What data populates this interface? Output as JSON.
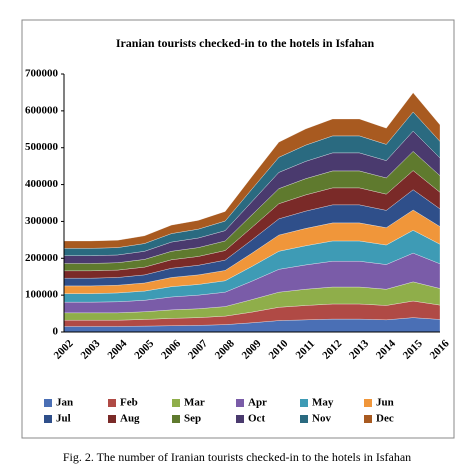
{
  "chart_data": {
    "type": "stacked-area",
    "title": "Iranian tourists checked-in to the hotels in Isfahan",
    "caption": "Fig. 2. The number of Iranian tourists checked-in to the hotels in Isfahan",
    "categories": [
      "2002",
      "2003",
      "2004",
      "2005",
      "2006",
      "2007",
      "2008",
      "2009",
      "2010",
      "2011",
      "2012",
      "2013",
      "2014",
      "2015",
      "2016"
    ],
    "ylim": [
      0,
      700000
    ],
    "yticks": [
      0,
      100000,
      200000,
      300000,
      400000,
      500000,
      600000,
      700000
    ],
    "series": [
      {
        "name": "Jan",
        "color": "#4a6fb5",
        "values": [
          15000,
          15000,
          15000,
          16000,
          17000,
          18000,
          20000,
          25000,
          31000,
          33000,
          35000,
          35000,
          33000,
          39000,
          34000
        ]
      },
      {
        "name": "Feb",
        "color": "#b04a45",
        "values": [
          17000,
          17000,
          17000,
          18000,
          20000,
          21000,
          23000,
          29000,
          36000,
          39000,
          41000,
          41000,
          39000,
          45000,
          39000
        ]
      },
      {
        "name": "Mar",
        "color": "#8fae4a",
        "values": [
          20000,
          20000,
          20000,
          21000,
          23000,
          24000,
          26000,
          34000,
          41000,
          44000,
          46000,
          46000,
          44000,
          52000,
          45000
        ]
      },
      {
        "name": "Apr",
        "color": "#7a5ca8",
        "values": [
          29000,
          29000,
          30000,
          31000,
          35000,
          37000,
          39000,
          50000,
          62000,
          66000,
          70000,
          70000,
          67000,
          78000,
          67000
        ]
      },
      {
        "name": "May",
        "color": "#3e9bb5",
        "values": [
          23000,
          23000,
          24000,
          25000,
          28000,
          29000,
          31000,
          40000,
          49000,
          52000,
          55000,
          55000,
          53000,
          62000,
          53000
        ]
      },
      {
        "name": "Jun",
        "color": "#f0963a",
        "values": [
          21000,
          21000,
          21000,
          22000,
          25000,
          26000,
          28000,
          36000,
          44000,
          47000,
          49000,
          49000,
          47000,
          55000,
          48000
        ]
      },
      {
        "name": "Jul",
        "color": "#2f4f8a",
        "values": [
          21000,
          21000,
          21000,
          22000,
          25000,
          26000,
          28000,
          36000,
          44000,
          47000,
          49000,
          49000,
          47000,
          55000,
          48000
        ]
      },
      {
        "name": "Aug",
        "color": "#7a2a28",
        "values": [
          20000,
          20000,
          20000,
          21000,
          23000,
          24000,
          26000,
          34000,
          41000,
          44000,
          46000,
          46000,
          44000,
          52000,
          45000
        ]
      },
      {
        "name": "Sep",
        "color": "#5f7a2e",
        "values": [
          20000,
          20000,
          20000,
          21000,
          23000,
          24000,
          26000,
          34000,
          41000,
          44000,
          46000,
          46000,
          44000,
          52000,
          45000
        ]
      },
      {
        "name": "Oct",
        "color": "#4a3a6e",
        "values": [
          21000,
          21000,
          21000,
          22000,
          25000,
          26000,
          28000,
          36000,
          44000,
          47000,
          49000,
          49000,
          47000,
          55000,
          48000
        ]
      },
      {
        "name": "Nov",
        "color": "#2a6a80",
        "values": [
          20000,
          20000,
          20000,
          21000,
          23000,
          24000,
          26000,
          34000,
          41000,
          44000,
          46000,
          46000,
          44000,
          52000,
          45000
        ]
      },
      {
        "name": "Dec",
        "color": "#a85a20",
        "values": [
          20000,
          20000,
          20000,
          21000,
          23000,
          24000,
          26000,
          34000,
          41000,
          44000,
          46000,
          46000,
          44000,
          52000,
          45000
        ]
      }
    ]
  }
}
